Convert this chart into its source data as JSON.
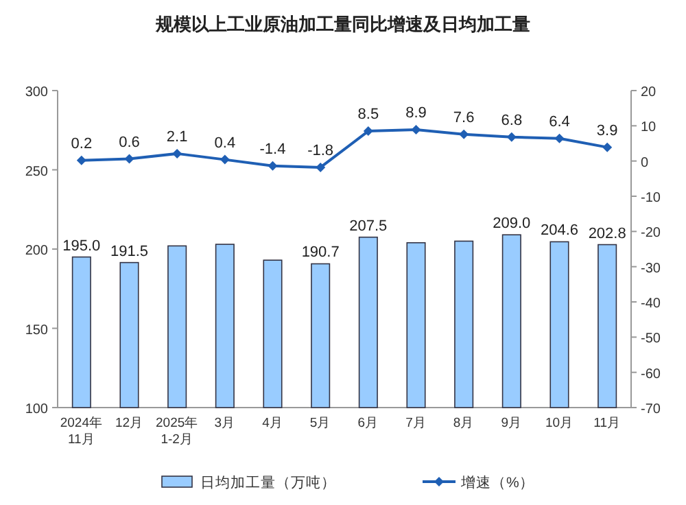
{
  "chart_data": {
    "type": "bar",
    "title": "规模以上工业原油加工量同比增速及日均加工量",
    "categories": [
      "2024年\n11月",
      "12月",
      "2025年\n1-2月",
      "3月",
      "4月",
      "5月",
      "6月",
      "7月",
      "8月",
      "9月",
      "10月",
      "11月"
    ],
    "series": [
      {
        "name": "日均加工量（万吨）",
        "color": "#99ccff",
        "values": [
          195.0,
          191.5,
          202,
          203,
          193,
          190.7,
          207.5,
          204,
          205,
          209.0,
          204.6,
          202.8
        ],
        "value_labels": [
          "195.0",
          "191.5",
          null,
          null,
          null,
          "190.7",
          "207.5",
          null,
          null,
          "209.0",
          "204.6",
          "202.8"
        ]
      },
      {
        "name": "增速（%）",
        "type": "line",
        "axis": "y2",
        "color": "#1f5fb4",
        "values": [
          0.2,
          0.6,
          2.1,
          0.4,
          -1.4,
          -1.8,
          8.5,
          8.9,
          7.6,
          6.8,
          6.4,
          3.9
        ],
        "value_labels": [
          "0.2",
          "0.6",
          "2.1",
          "0.4",
          "-1.4",
          "-1.8",
          "8.5",
          "8.9",
          "7.6",
          "6.8",
          "6.4",
          "3.9"
        ]
      }
    ],
    "ylim": [
      100,
      300
    ],
    "yticks": [
      100,
      150,
      200,
      250,
      300
    ],
    "y2lim": [
      -70,
      20
    ],
    "y2ticks": [
      -70,
      -60,
      -50,
      -40,
      -30,
      -20,
      -10,
      0,
      10,
      20
    ],
    "marker": "diamond",
    "legend": "bottom"
  }
}
